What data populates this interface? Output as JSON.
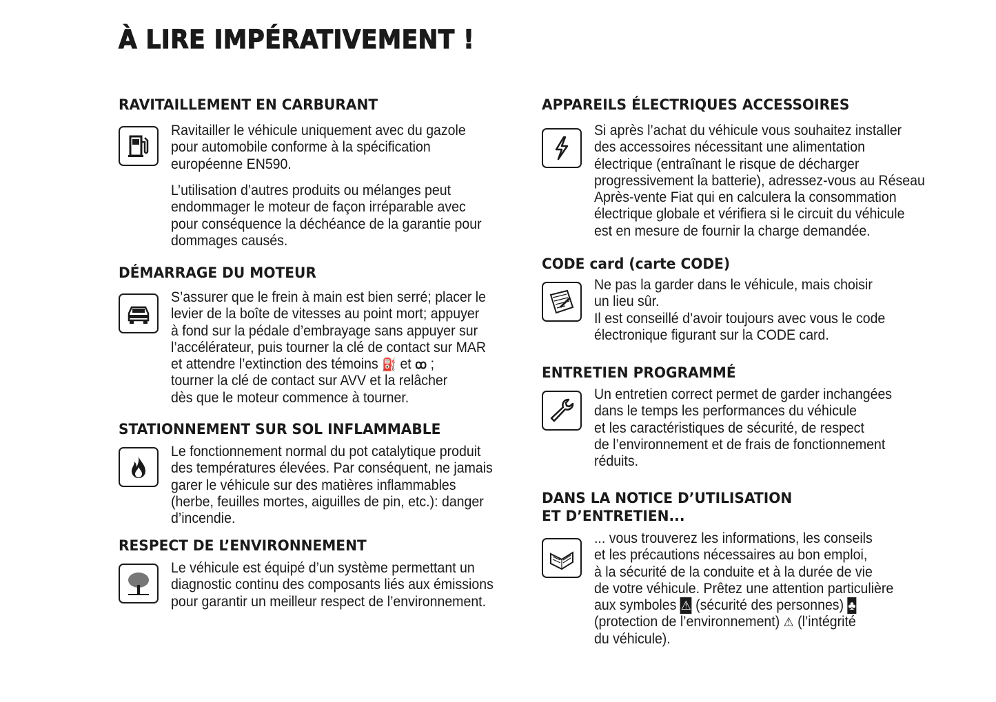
{
  "title": "À LIRE IMPÉRATIVEMENT !",
  "left": [
    {
      "heading": "RAVITAILLEMENT EN CARBURANT",
      "icon": "fuel-pump-icon",
      "p1": [
        "Ravitailler le véhicule uniquement avec du gazole",
        "pour automobile conforme à la spécification",
        "européenne EN590."
      ],
      "p2": [
        "L’utilisation d’autres produits ou mélanges peut",
        "endommager le moteur de façon irréparable avec",
        "pour conséquence la déchéance de la garantie pour",
        "dommages causés."
      ]
    },
    {
      "heading": "DÉMARRAGE DU MOTEUR",
      "icon": "car-icon",
      "lines": [
        "S’assurer que le frein à main est bien serré; placer le",
        "levier de la boîte de vitesses au point mort; appuyer",
        "à fond sur la pédale d’embrayage sans appuyer sur",
        "l’accélérateur, puis tourner la clé de contact sur MAR"
      ],
      "line5a": "et attendre l’extinction des témoins",
      "line5b": "et",
      "line5c": ";",
      "lines2": [
        "tourner la clé de contact sur AVV et la relâcher",
        "dès que le moteur commence à tourner."
      ]
    },
    {
      "heading": "STATIONNEMENT SUR SOL INFLAMMABLE",
      "icon": "fire-icon",
      "lines": [
        "Le fonctionnement normal du pot catalytique produit",
        "des températures élevées. Par conséquent, ne jamais",
        "garer le véhicule sur des matières inflammables",
        "(herbe, feuilles mortes, aiguilles de pin, etc.): danger",
        "d’incendie."
      ]
    },
    {
      "heading": "RESPECT DE L’ENVIRONNEMENT",
      "icon": "tree-icon",
      "lines": [
        "Le véhicule est équipé d’un système permettant un",
        "diagnostic continu des composants liés aux émissions",
        "pour garantir un meilleur respect de l’environnement."
      ]
    }
  ],
  "right": [
    {
      "heading": "APPAREILS ÉLECTRIQUES ACCESSOIRES",
      "icon": "lightning-icon",
      "lines": [
        "Si après l’achat du véhicule vous souhaitez installer",
        "des accessoires nécessitant une alimentation",
        "électrique (entraînant le risque de décharger",
        "progressivement la batterie), adressez-vous au Réseau",
        "Après-vente Fiat qui en calculera la consommation",
        "électrique globale et vérifiera si le circuit du véhicule",
        "est en mesure de fournir la charge demandée."
      ]
    },
    {
      "heading": "CODE card (carte CODE)",
      "icon": "code-card-icon",
      "lines": [
        "Ne pas la garder dans le véhicule, mais choisir",
        "un lieu sûr.",
        "Il est conseillé d’avoir toujours avec vous le code",
        "électronique figurant sur la CODE card."
      ]
    },
    {
      "heading": "ENTRETIEN PROGRAMMÉ",
      "icon": "wrench-icon",
      "lines": [
        "Un entretien correct permet de garder inchangées",
        "dans le temps les performances du véhicule",
        "et les caractéristiques de sécurité, de respect",
        "de l’environnement et de frais de fonctionnement",
        "réduits."
      ]
    },
    {
      "heading": "DANS LA NOTICE D’UTILISATION",
      "heading2": "ET D’ENTRETIEN...",
      "icon": "book-icon",
      "lines": [
        "... vous trouverez les informations, les conseils",
        "et les précautions nécessaires au bon emploi,",
        "à la sécurité de la conduite et à la durée de vie",
        "de votre véhicule. Prêtez une attention particulière"
      ],
      "line5a": "aux symboles",
      "line5b": "(sécurité des personnes)",
      "line6a": "(protection de l’environnement)",
      "line6b": "(l’intégrité",
      "line7": "du véhicule)."
    }
  ]
}
